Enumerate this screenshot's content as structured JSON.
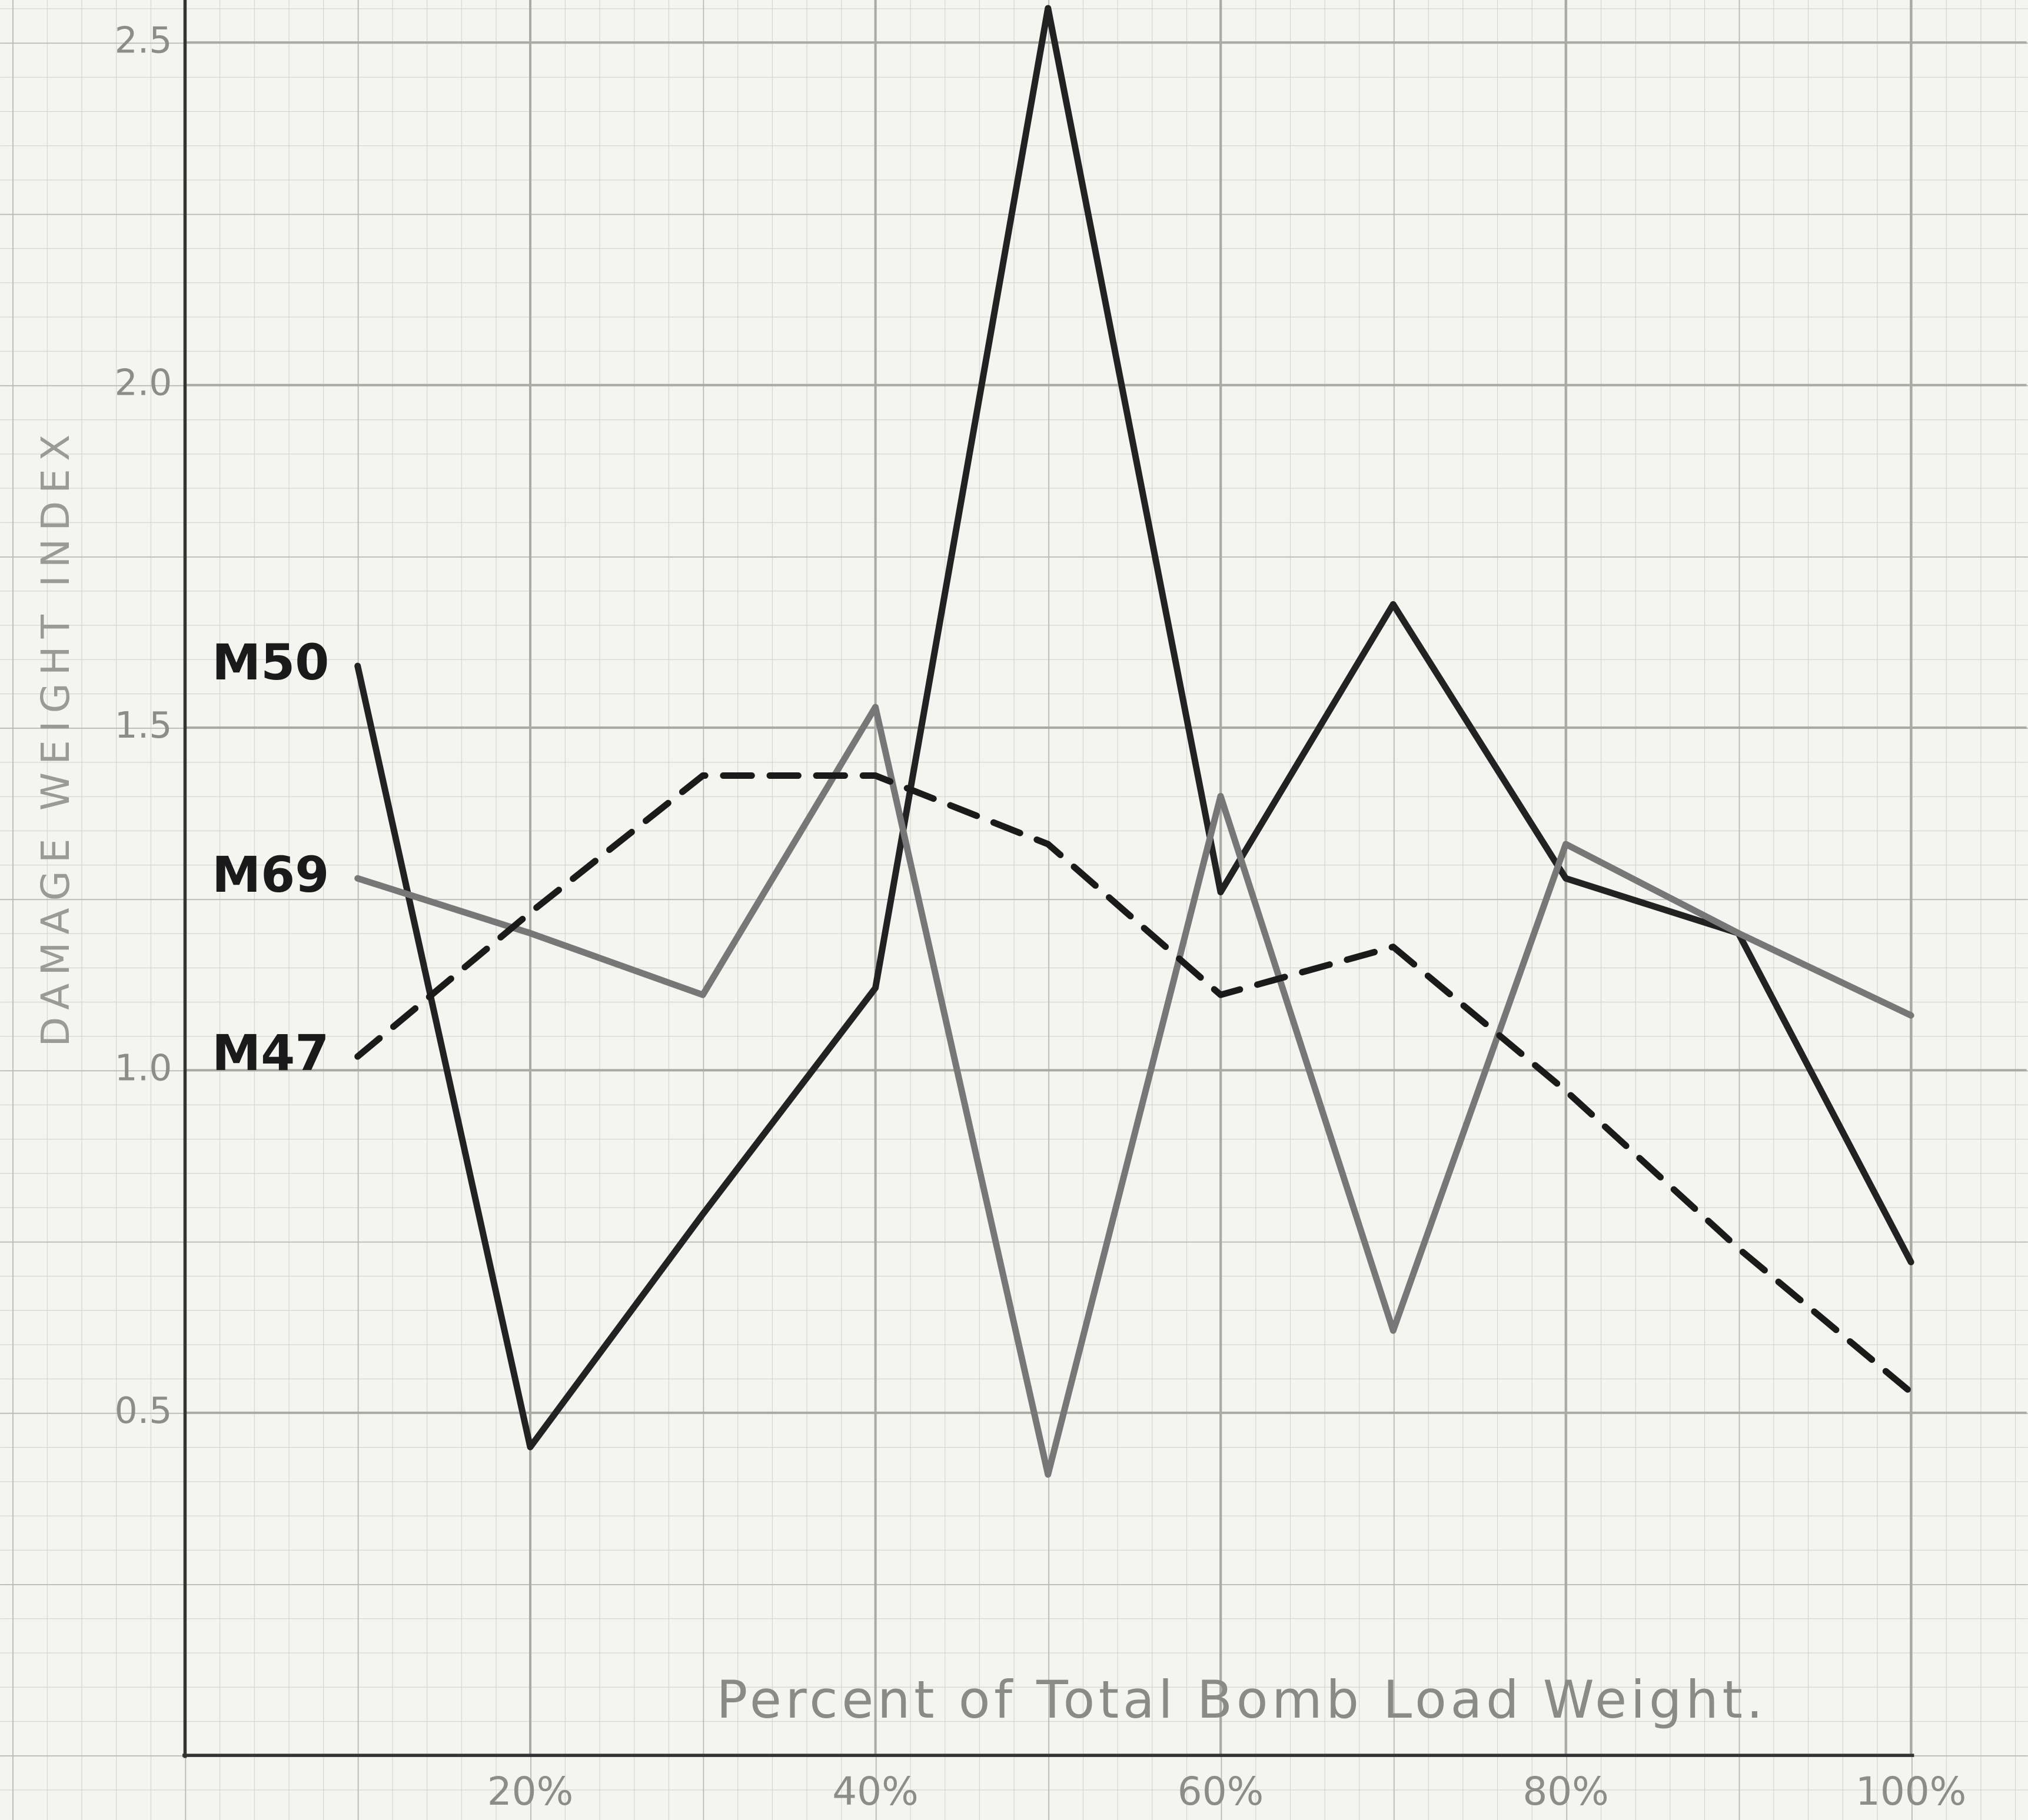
{
  "chart_data": {
    "type": "line",
    "x_label": "Percent of Total Bomb Load Weight.",
    "y_label": "DAMAGE WEIGHT INDEX",
    "x": [
      10,
      20,
      30,
      40,
      50,
      60,
      70,
      80,
      90,
      100
    ],
    "series": [
      {
        "name": "M50",
        "color": "#222222",
        "dash": false,
        "values": [
          1.59,
          0.45,
          0.79,
          1.12,
          2.55,
          1.26,
          1.68,
          1.28,
          1.2,
          0.72
        ]
      },
      {
        "name": "M69",
        "color": "#777777",
        "dash": false,
        "values": [
          1.28,
          1.2,
          1.11,
          1.53,
          0.41,
          1.4,
          0.62,
          1.33,
          1.2,
          1.08
        ]
      },
      {
        "name": "M47",
        "color": "#1a1a1a",
        "dash": true,
        "values": [
          1.02,
          1.23,
          1.43,
          1.43,
          1.33,
          1.11,
          1.18,
          0.97,
          0.74,
          0.53
        ]
      }
    ],
    "xlim": [
      0,
      106.7
    ],
    "xticks": [
      {
        "value": 20,
        "label": "20%"
      },
      {
        "value": 40,
        "label": "40%"
      },
      {
        "value": 60,
        "label": "60%"
      },
      {
        "value": 80,
        "label": "80%"
      },
      {
        "value": 100,
        "label": "100%"
      }
    ],
    "ylim": [
      0,
      2.562
    ],
    "yticks": [
      0.5,
      {
        "value": 1.0,
        "label": "1.0"
      },
      1.5,
      {
        "value": 2.0,
        "label": "2.0"
      },
      2.5
    ],
    "grid": true
  }
}
